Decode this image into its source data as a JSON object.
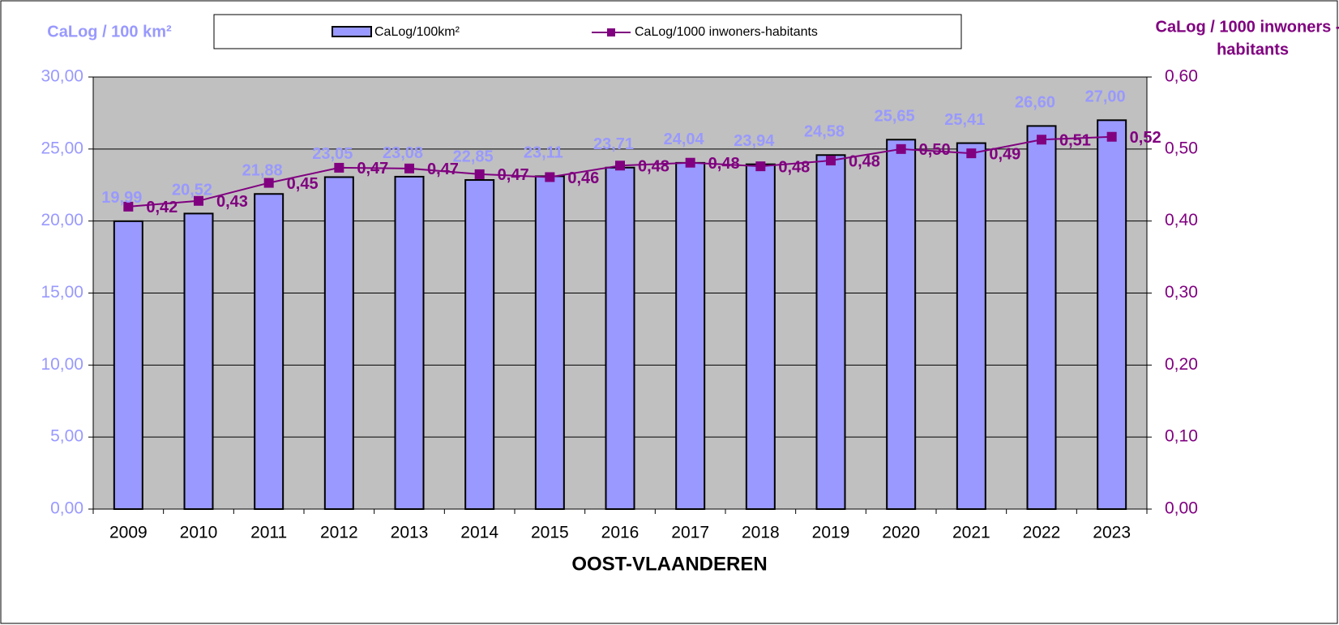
{
  "chart_data": {
    "type": "bar_line",
    "ylabel": "CaLog / 100 km²",
    "y2label": [
      "CaLog / 1000 inwoners -",
      "habitants"
    ],
    "xlabel": "OOST-VLAANDEREN",
    "categories": [
      "2009",
      "2010",
      "2011",
      "2012",
      "2013",
      "2014",
      "2015",
      "2016",
      "2017",
      "2018",
      "2019",
      "2020",
      "2021",
      "2022",
      "2023"
    ],
    "series": [
      {
        "name": "CaLog/100km²",
        "type": "bar",
        "color": "#9999ff",
        "values": [
          19.99,
          20.52,
          21.88,
          23.05,
          23.08,
          22.85,
          23.11,
          23.71,
          24.04,
          23.94,
          24.58,
          25.65,
          25.41,
          26.6,
          27.0
        ],
        "value_labels": [
          "19,99",
          "20,52",
          "21,88",
          "23,05",
          "23,08",
          "22,85",
          "23,11",
          "23,71",
          "24,04",
          "23,94",
          "24,58",
          "25,65",
          "25,41",
          "26,60",
          "27,00"
        ]
      },
      {
        "name": "CaLog/1000 inwoners-habitants",
        "type": "line",
        "axis": "y2",
        "color": "#800080",
        "values": [
          0.42,
          0.428,
          0.453,
          0.474,
          0.473,
          0.465,
          0.461,
          0.477,
          0.481,
          0.476,
          0.484,
          0.5,
          0.494,
          0.513,
          0.517
        ],
        "value_labels": [
          "0,42",
          "0,43",
          "0,45",
          "0,47",
          "0,47",
          "0,47",
          "0,46",
          "0,48",
          "0,48",
          "0,48",
          "0,48",
          "0,50",
          "0,49",
          "0,51",
          "0,52"
        ]
      }
    ],
    "ylim": [
      0,
      30
    ],
    "yticks": [
      {
        "value": 0,
        "label": "0,00"
      },
      {
        "value": 5,
        "label": "5,00"
      },
      {
        "value": 10,
        "label": "10,00"
      },
      {
        "value": 15,
        "label": "15,00"
      },
      {
        "value": 20,
        "label": "20,00"
      },
      {
        "value": 25,
        "label": "25,00"
      },
      {
        "value": 30,
        "label": "30,00"
      }
    ],
    "y2lim": [
      0,
      0.6
    ],
    "y2ticks": [
      {
        "value": 0,
        "label": "0,00"
      },
      {
        "value": 0.1,
        "label": "0,10"
      },
      {
        "value": 0.2,
        "label": "0,20"
      },
      {
        "value": 0.3,
        "label": "0,30"
      },
      {
        "value": 0.4,
        "label": "0,40"
      },
      {
        "value": 0.5,
        "label": "0,50"
      },
      {
        "value": 0.6,
        "label": "0,60"
      }
    ],
    "grid": true,
    "legend": "top"
  }
}
